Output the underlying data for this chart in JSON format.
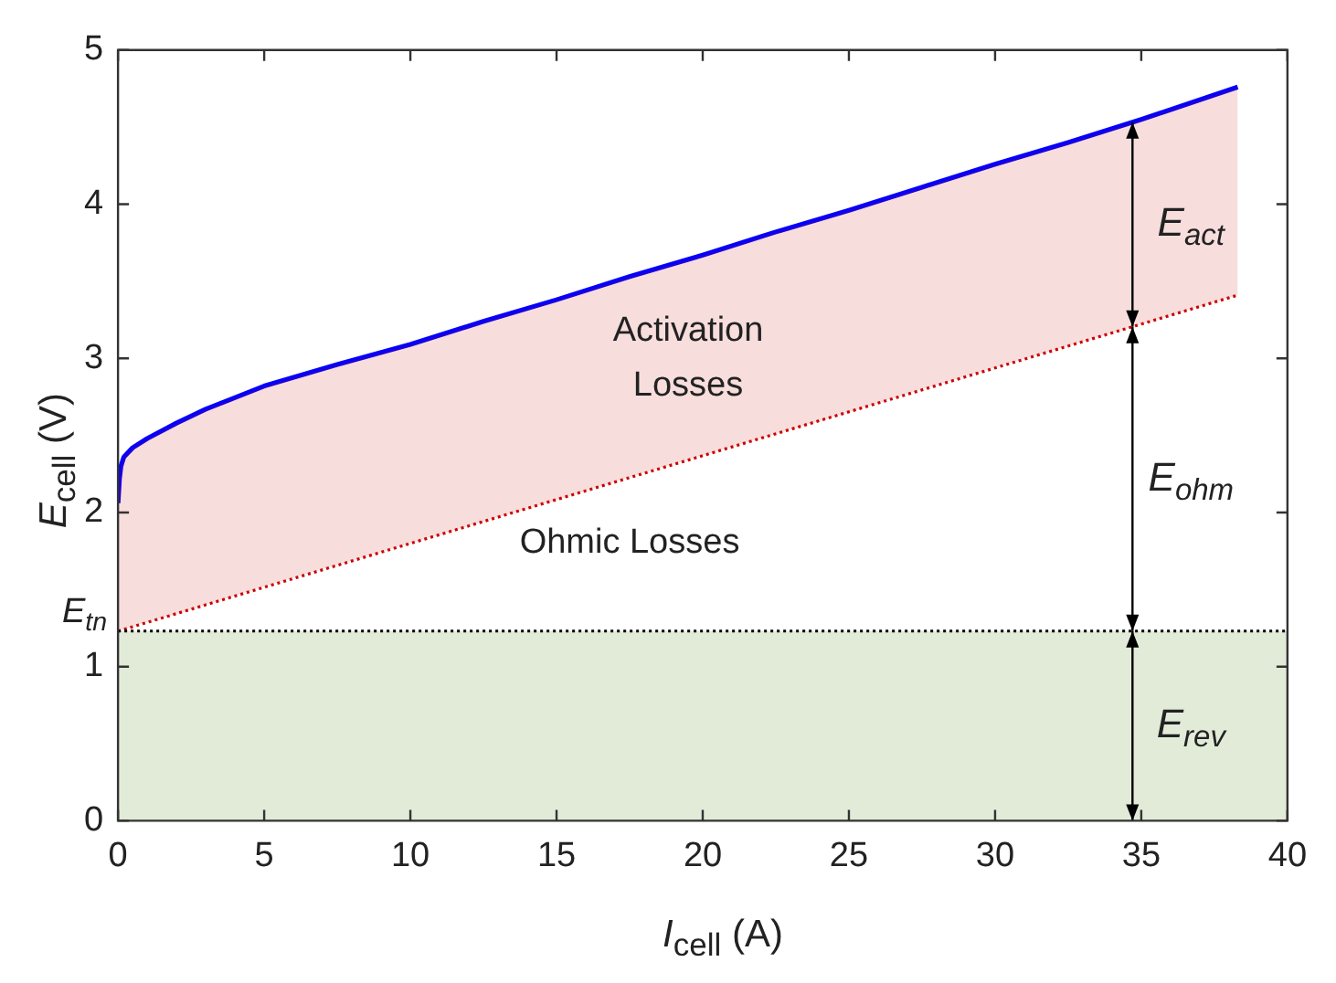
{
  "chart_data": {
    "type": "line",
    "xlabel": "I$_{cell}$ (A)",
    "ylabel": "E$_{cell}$ (V)",
    "xlim": [
      0,
      40
    ],
    "xticks": [
      0,
      5,
      10,
      15,
      20,
      25,
      30,
      35,
      40
    ],
    "ylim": [
      0,
      5
    ],
    "yticks": [
      0,
      1,
      2,
      3,
      4,
      5
    ],
    "grid": false,
    "legend": false,
    "series": [
      {
        "type": "line",
        "color": "#cc0000",
        "line_style": "dotted",
        "x": [
          0,
          38.3
        ],
        "values": [
          1.23,
          3.41
        ]
      },
      {
        "type": "line",
        "color": "#0000ff",
        "lower": [
          1.23,
          1.23,
          1.24,
          1.24,
          1.26,
          1.29,
          1.34,
          1.4,
          1.52,
          1.66,
          1.8,
          1.94,
          2.08,
          2.23,
          2.37,
          2.51,
          2.65,
          2.8,
          2.94,
          3.08,
          3.22,
          3.41
        ],
        "upper": [
          2.06,
          2.22,
          2.3,
          2.36,
          2.42,
          2.48,
          2.58,
          2.67,
          2.82,
          2.96,
          3.09,
          3.24,
          3.38,
          3.53,
          3.67,
          3.82,
          3.96,
          4.11,
          4.26,
          4.4,
          4.55,
          4.76
        ],
        "line_style": "solid",
        "x": [
          0,
          0.05,
          0.1,
          0.2,
          0.5,
          1,
          2,
          3,
          5,
          7.5,
          10,
          12.5,
          15,
          17.5,
          20,
          22.5,
          25,
          27.5,
          30,
          32.5,
          35,
          38.3
        ],
        "values": [
          2.06,
          2.22,
          2.3,
          2.36,
          2.42,
          2.48,
          2.58,
          2.67,
          2.82,
          2.96,
          3.09,
          3.24,
          3.38,
          3.53,
          3.67,
          3.82,
          3.96,
          4.11,
          4.26,
          4.4,
          4.55,
          4.76
        ]
      }
    ],
    "bands": [
      {
        "axis": "y",
        "from": 0,
        "to": 1.23,
        "color": "#e2ebd8"
      }
    ],
    "ref_lines": [
      {
        "axis": "y",
        "value": 1.23,
        "label": "E$_{tn}$",
        "color": "#000000",
        "line_style": "dotted"
      }
    ],
    "annotations": [
      "Activation Losses",
      "Ohmic Losses",
      "E$_{act}$",
      "E$_{ohm}$",
      "E$_{rev}$"
    ]
  }
}
